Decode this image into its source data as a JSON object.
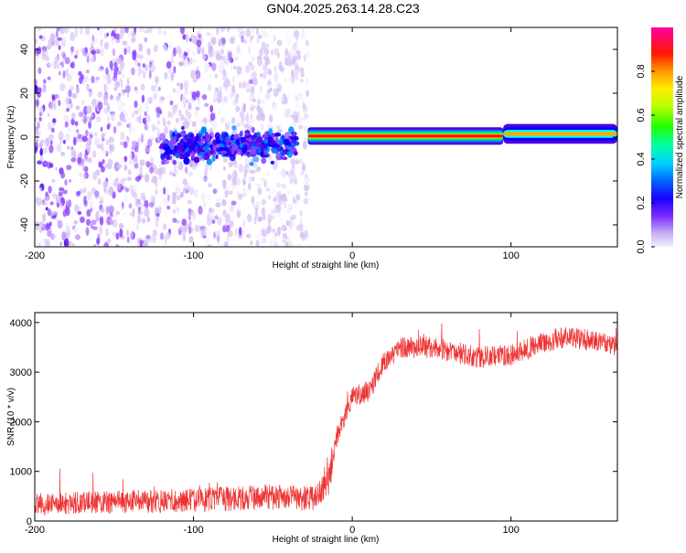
{
  "title": "GN04.2025.263.14.28.C23",
  "chart_data": [
    {
      "type": "heatmap",
      "name": "spectrogram",
      "xlabel": "Height of straight line (km)",
      "ylabel": "Frequency (Hz)",
      "xlim": [
        -200,
        167
      ],
      "ylim": [
        -50,
        50
      ],
      "xticks": [
        -200,
        -100,
        0,
        100
      ],
      "yticks": [
        -40,
        -20,
        0,
        20,
        40
      ],
      "colorbar": {
        "label": "Normalized spectral amplitude",
        "range": [
          0.0,
          1.0
        ],
        "ticks": [
          0.0,
          0.2,
          0.4,
          0.6,
          0.8
        ],
        "colors": [
          "#f0f0ff",
          "#d7c4f5",
          "#8e44ff",
          "#4b00e8",
          "#0000ff",
          "#0088ff",
          "#00ffff",
          "#00ff44",
          "#88ff00",
          "#ffff00",
          "#ffaa00",
          "#ff0000",
          "#ff00aa"
        ]
      },
      "segments": [
        {
          "name": "noise",
          "x": [
            -200,
            -28
          ],
          "freq_range": [
            -50,
            50
          ],
          "amplitude": 0.12
        },
        {
          "name": "trail-head-noisy",
          "x": [
            -120,
            -35
          ],
          "freq_center": -4,
          "freq_halfwidth": 5,
          "amplitude": 0.3
        },
        {
          "name": "trail-main",
          "x": [
            -28,
            95
          ],
          "freq_center": 0.5,
          "freq_halfwidth": 2,
          "amplitude": 0.85
        },
        {
          "name": "trail-end",
          "x": [
            95,
            167
          ],
          "freq_center": 1.5,
          "freq_halfwidth": 3,
          "amplitude": 0.7
        }
      ]
    },
    {
      "type": "line",
      "name": "snr",
      "xlabel": "Height of straight line (km)",
      "ylabel": "SNR (10 * v/v)",
      "xlim": [
        -200,
        167
      ],
      "ylim": [
        0,
        4200
      ],
      "xticks": [
        -200,
        -100,
        0,
        100
      ],
      "yticks": [
        0,
        1000,
        2000,
        3000,
        4000
      ],
      "color": "#ee3333",
      "x": [
        -200,
        -150,
        -100,
        -50,
        -25,
        -15,
        -10,
        0,
        10,
        20,
        30,
        50,
        80,
        100,
        130,
        150,
        167
      ],
      "y": [
        350,
        380,
        420,
        480,
        450,
        800,
        1700,
        2500,
        2600,
        3200,
        3500,
        3500,
        3300,
        3350,
        3700,
        3650,
        3500
      ]
    }
  ]
}
